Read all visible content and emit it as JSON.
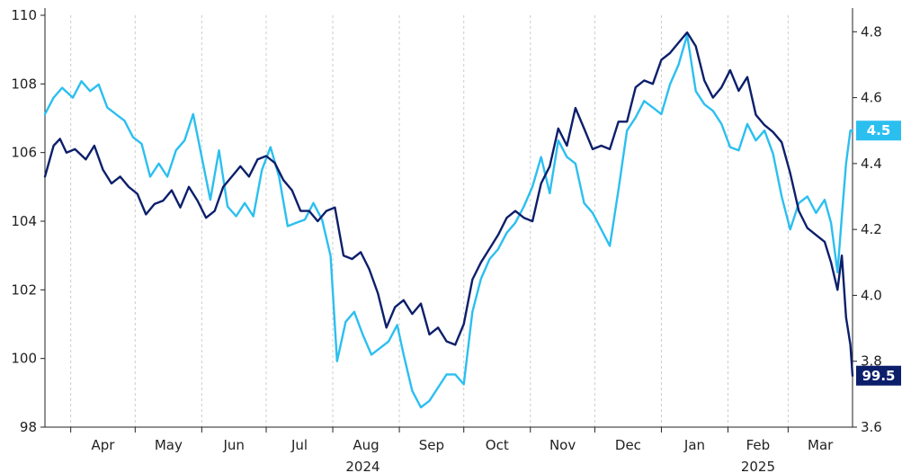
{
  "chart_data": {
    "type": "line",
    "title": "",
    "grid": "vertical",
    "legend": "none",
    "colors": {
      "left_series": "#0c1f6b",
      "right_series": "#2bbff0",
      "axis": "#222222",
      "grid": "#cccccc"
    },
    "x_axis": {
      "range": [
        "2024-03-20",
        "2025-03-31"
      ],
      "ticks": [
        {
          "label": "Apr",
          "date": "2024-04-01"
        },
        {
          "label": "May",
          "date": "2024-05-01"
        },
        {
          "label": "Jun",
          "date": "2024-06-01"
        },
        {
          "label": "Jul",
          "date": "2024-07-01"
        },
        {
          "label": "Aug",
          "date": "2024-08-01"
        },
        {
          "label": "Sep",
          "date": "2024-09-01"
        },
        {
          "label": "Oct",
          "date": "2024-10-01"
        },
        {
          "label": "Nov",
          "date": "2024-11-01"
        },
        {
          "label": "Dec",
          "date": "2024-12-01"
        },
        {
          "label": "Jan",
          "date": "2025-01-01"
        },
        {
          "label": "Feb",
          "date": "2025-02-01"
        },
        {
          "label": "Mar",
          "date": "2025-03-01"
        }
      ],
      "years": [
        {
          "label": "2024",
          "date": "2024-08-15"
        },
        {
          "label": "2025",
          "date": "2025-02-15"
        }
      ]
    },
    "y_left": {
      "min": 98,
      "max": 110,
      "ticks": [
        "98",
        "100",
        "102",
        "104",
        "106",
        "108",
        "110"
      ]
    },
    "y_right": {
      "min": 3.6,
      "max": 4.85,
      "ticks": [
        "3.6",
        "3.8",
        "4.0",
        "4.2",
        "4.4",
        "4.6",
        "4.8"
      ]
    },
    "series": [
      {
        "axis": "left",
        "last_label": "99.5",
        "points": [
          [
            "2024-03-20",
            105.3
          ],
          [
            "2024-03-24",
            106.2
          ],
          [
            "2024-03-27",
            106.4
          ],
          [
            "2024-03-30",
            106.0
          ],
          [
            "2024-04-03",
            106.1
          ],
          [
            "2024-04-08",
            105.8
          ],
          [
            "2024-04-12",
            106.2
          ],
          [
            "2024-04-16",
            105.5
          ],
          [
            "2024-04-20",
            105.1
          ],
          [
            "2024-04-24",
            105.3
          ],
          [
            "2024-04-28",
            105.0
          ],
          [
            "2024-05-02",
            104.8
          ],
          [
            "2024-05-06",
            104.2
          ],
          [
            "2024-05-10",
            104.5
          ],
          [
            "2024-05-14",
            104.6
          ],
          [
            "2024-05-18",
            104.9
          ],
          [
            "2024-05-22",
            104.4
          ],
          [
            "2024-05-26",
            105.0
          ],
          [
            "2024-05-30",
            104.6
          ],
          [
            "2024-06-03",
            104.1
          ],
          [
            "2024-06-07",
            104.3
          ],
          [
            "2024-06-11",
            105.0
          ],
          [
            "2024-06-15",
            105.3
          ],
          [
            "2024-06-19",
            105.6
          ],
          [
            "2024-06-23",
            105.3
          ],
          [
            "2024-06-27",
            105.8
          ],
          [
            "2024-07-01",
            105.9
          ],
          [
            "2024-07-05",
            105.7
          ],
          [
            "2024-07-09",
            105.2
          ],
          [
            "2024-07-13",
            104.9
          ],
          [
            "2024-07-17",
            104.3
          ],
          [
            "2024-07-21",
            104.3
          ],
          [
            "2024-07-25",
            104.0
          ],
          [
            "2024-07-29",
            104.3
          ],
          [
            "2024-08-02",
            104.4
          ],
          [
            "2024-08-06",
            103.0
          ],
          [
            "2024-08-10",
            102.9
          ],
          [
            "2024-08-14",
            103.1
          ],
          [
            "2024-08-18",
            102.6
          ],
          [
            "2024-08-22",
            101.9
          ],
          [
            "2024-08-26",
            100.9
          ],
          [
            "2024-08-30",
            101.5
          ],
          [
            "2024-09-03",
            101.7
          ],
          [
            "2024-09-07",
            101.3
          ],
          [
            "2024-09-11",
            101.6
          ],
          [
            "2024-09-15",
            100.7
          ],
          [
            "2024-09-19",
            100.9
          ],
          [
            "2024-09-23",
            100.5
          ],
          [
            "2024-09-27",
            100.4
          ],
          [
            "2024-10-01",
            101.0
          ],
          [
            "2024-10-05",
            102.3
          ],
          [
            "2024-10-09",
            102.8
          ],
          [
            "2024-10-13",
            103.2
          ],
          [
            "2024-10-17",
            103.6
          ],
          [
            "2024-10-21",
            104.1
          ],
          [
            "2024-10-25",
            104.3
          ],
          [
            "2024-10-29",
            104.1
          ],
          [
            "2024-11-02",
            104.0
          ],
          [
            "2024-11-06",
            105.1
          ],
          [
            "2024-11-10",
            105.6
          ],
          [
            "2024-11-14",
            106.7
          ],
          [
            "2024-11-18",
            106.2
          ],
          [
            "2024-11-22",
            107.3
          ],
          [
            "2024-11-26",
            106.7
          ],
          [
            "2024-11-30",
            106.1
          ],
          [
            "2024-12-04",
            106.2
          ],
          [
            "2024-12-08",
            106.1
          ],
          [
            "2024-12-12",
            106.9
          ],
          [
            "2024-12-16",
            106.9
          ],
          [
            "2024-12-20",
            107.9
          ],
          [
            "2024-12-24",
            108.1
          ],
          [
            "2024-12-28",
            108.0
          ],
          [
            "2025-01-01",
            108.7
          ],
          [
            "2025-01-05",
            108.9
          ],
          [
            "2025-01-09",
            109.2
          ],
          [
            "2025-01-13",
            109.5
          ],
          [
            "2025-01-17",
            109.1
          ],
          [
            "2025-01-21",
            108.1
          ],
          [
            "2025-01-25",
            107.6
          ],
          [
            "2025-01-29",
            107.9
          ],
          [
            "2025-02-02",
            108.4
          ],
          [
            "2025-02-06",
            107.8
          ],
          [
            "2025-02-10",
            108.2
          ],
          [
            "2025-02-14",
            107.1
          ],
          [
            "2025-02-18",
            106.8
          ],
          [
            "2025-02-22",
            106.6
          ],
          [
            "2025-02-26",
            106.3
          ],
          [
            "2025-03-02",
            105.4
          ],
          [
            "2025-03-06",
            104.3
          ],
          [
            "2025-03-10",
            103.8
          ],
          [
            "2025-03-14",
            103.6
          ],
          [
            "2025-03-18",
            103.4
          ],
          [
            "2025-03-21",
            102.8
          ],
          [
            "2025-03-24",
            102.0
          ],
          [
            "2025-03-26",
            103.0
          ],
          [
            "2025-03-28",
            101.2
          ],
          [
            "2025-03-30",
            100.4
          ],
          [
            "2025-03-31",
            99.5
          ]
        ]
      },
      {
        "axis": "right",
        "last_label": "4.5",
        "points": [
          [
            "2024-03-20",
            4.55
          ],
          [
            "2024-03-24",
            4.6
          ],
          [
            "2024-03-28",
            4.63
          ],
          [
            "2024-04-02",
            4.6
          ],
          [
            "2024-04-06",
            4.65
          ],
          [
            "2024-04-10",
            4.62
          ],
          [
            "2024-04-14",
            4.64
          ],
          [
            "2024-04-18",
            4.57
          ],
          [
            "2024-04-22",
            4.55
          ],
          [
            "2024-04-26",
            4.53
          ],
          [
            "2024-04-30",
            4.48
          ],
          [
            "2024-05-04",
            4.46
          ],
          [
            "2024-05-08",
            4.36
          ],
          [
            "2024-05-12",
            4.4
          ],
          [
            "2024-05-16",
            4.36
          ],
          [
            "2024-05-20",
            4.44
          ],
          [
            "2024-05-24",
            4.47
          ],
          [
            "2024-05-28",
            4.55
          ],
          [
            "2024-06-01",
            4.42
          ],
          [
            "2024-06-05",
            4.29
          ],
          [
            "2024-06-09",
            4.44
          ],
          [
            "2024-06-13",
            4.27
          ],
          [
            "2024-06-17",
            4.24
          ],
          [
            "2024-06-21",
            4.28
          ],
          [
            "2024-06-25",
            4.24
          ],
          [
            "2024-06-29",
            4.38
          ],
          [
            "2024-07-03",
            4.45
          ],
          [
            "2024-07-07",
            4.36
          ],
          [
            "2024-07-11",
            4.21
          ],
          [
            "2024-07-15",
            4.22
          ],
          [
            "2024-07-19",
            4.23
          ],
          [
            "2024-07-23",
            4.28
          ],
          [
            "2024-07-27",
            4.23
          ],
          [
            "2024-07-31",
            4.12
          ],
          [
            "2024-08-03",
            3.8
          ],
          [
            "2024-08-07",
            3.92
          ],
          [
            "2024-08-11",
            3.95
          ],
          [
            "2024-08-15",
            3.88
          ],
          [
            "2024-08-19",
            3.82
          ],
          [
            "2024-08-23",
            3.84
          ],
          [
            "2024-08-27",
            3.86
          ],
          [
            "2024-08-31",
            3.91
          ],
          [
            "2024-09-03",
            3.82
          ],
          [
            "2024-09-07",
            3.71
          ],
          [
            "2024-09-11",
            3.66
          ],
          [
            "2024-09-15",
            3.68
          ],
          [
            "2024-09-19",
            3.72
          ],
          [
            "2024-09-23",
            3.76
          ],
          [
            "2024-09-27",
            3.76
          ],
          [
            "2024-10-01",
            3.73
          ],
          [
            "2024-10-05",
            3.95
          ],
          [
            "2024-10-09",
            4.05
          ],
          [
            "2024-10-13",
            4.11
          ],
          [
            "2024-10-17",
            4.14
          ],
          [
            "2024-10-21",
            4.19
          ],
          [
            "2024-10-25",
            4.22
          ],
          [
            "2024-10-29",
            4.27
          ],
          [
            "2024-11-02",
            4.33
          ],
          [
            "2024-11-06",
            4.42
          ],
          [
            "2024-11-10",
            4.31
          ],
          [
            "2024-11-14",
            4.47
          ],
          [
            "2024-11-18",
            4.42
          ],
          [
            "2024-11-22",
            4.4
          ],
          [
            "2024-11-26",
            4.28
          ],
          [
            "2024-11-30",
            4.25
          ],
          [
            "2024-12-04",
            4.2
          ],
          [
            "2024-12-08",
            4.15
          ],
          [
            "2024-12-12",
            4.32
          ],
          [
            "2024-12-16",
            4.5
          ],
          [
            "2024-12-20",
            4.54
          ],
          [
            "2024-12-24",
            4.59
          ],
          [
            "2024-12-28",
            4.57
          ],
          [
            "2025-01-01",
            4.55
          ],
          [
            "2025-01-05",
            4.64
          ],
          [
            "2025-01-09",
            4.7
          ],
          [
            "2025-01-13",
            4.79
          ],
          [
            "2025-01-17",
            4.62
          ],
          [
            "2025-01-21",
            4.58
          ],
          [
            "2025-01-25",
            4.56
          ],
          [
            "2025-01-29",
            4.52
          ],
          [
            "2025-02-02",
            4.45
          ],
          [
            "2025-02-06",
            4.44
          ],
          [
            "2025-02-10",
            4.52
          ],
          [
            "2025-02-14",
            4.47
          ],
          [
            "2025-02-18",
            4.5
          ],
          [
            "2025-02-22",
            4.43
          ],
          [
            "2025-02-26",
            4.3
          ],
          [
            "2025-03-02",
            4.2
          ],
          [
            "2025-03-06",
            4.28
          ],
          [
            "2025-03-10",
            4.3
          ],
          [
            "2025-03-14",
            4.25
          ],
          [
            "2025-03-18",
            4.29
          ],
          [
            "2025-03-21",
            4.22
          ],
          [
            "2025-03-24",
            4.07
          ],
          [
            "2025-03-26",
            4.24
          ],
          [
            "2025-03-28",
            4.4
          ],
          [
            "2025-03-30",
            4.5
          ],
          [
            "2025-03-31",
            4.5
          ]
        ]
      }
    ]
  }
}
